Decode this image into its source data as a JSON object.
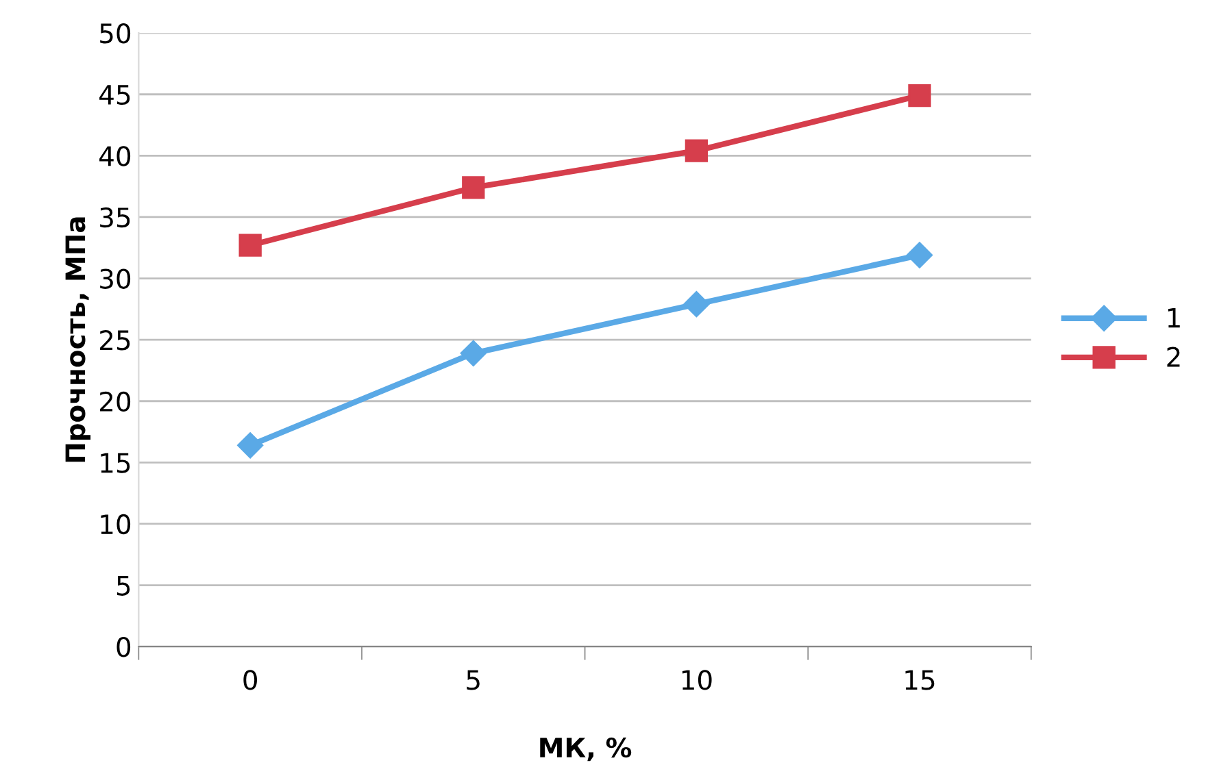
{
  "chart_data": {
    "type": "line",
    "xlabel": "МК, %",
    "ylabel": "Прочность, МПа",
    "categories": [
      "0",
      "5",
      "10",
      "15"
    ],
    "series": [
      {
        "name": "1",
        "color": "#5aa9e6",
        "values": [
          16.4,
          23.9,
          27.9,
          31.9
        ],
        "marker": "diamond"
      },
      {
        "name": "2",
        "color": "#d63e4c",
        "values": [
          32.7,
          37.4,
          40.4,
          44.9
        ],
        "marker": "square"
      }
    ],
    "ylim": [
      0,
      50
    ],
    "yticks": [
      0,
      5,
      10,
      15,
      20,
      25,
      30,
      35,
      40,
      45,
      50
    ],
    "grid": "y",
    "legend": "right",
    "line_style": "solid"
  }
}
